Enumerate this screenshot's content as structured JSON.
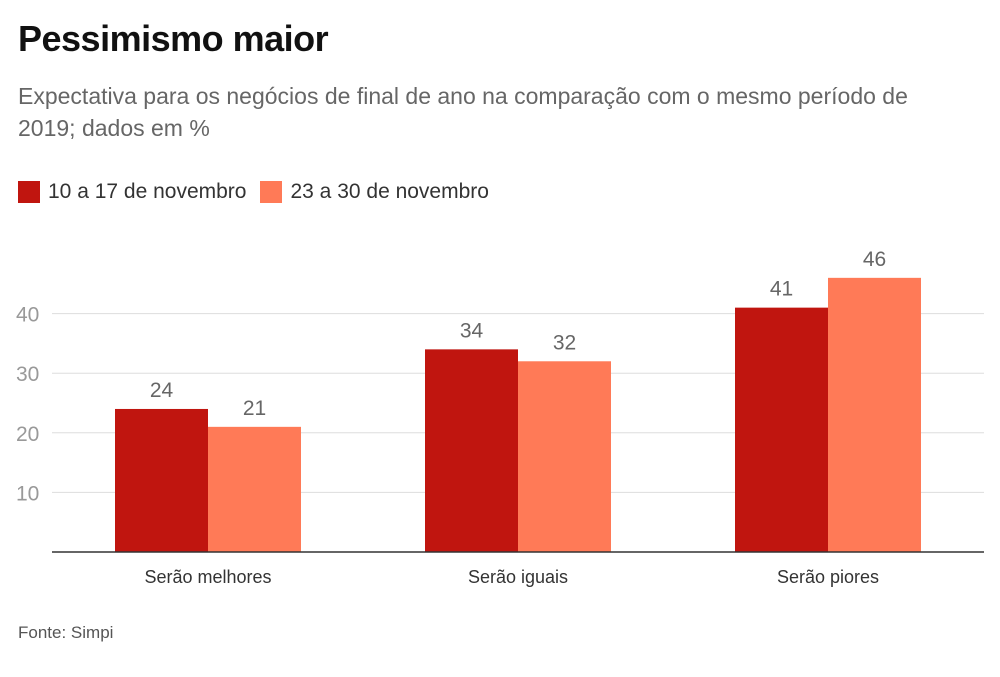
{
  "header": {
    "title": "Pessimismo maior",
    "subtitle": "Expectativa para os negócios de final de ano na comparação com o mesmo período de 2019; dados em %"
  },
  "footer": {
    "source": "Fonte: Simpi"
  },
  "colors": {
    "series1": "#c0150f",
    "series2": "#ff7a57",
    "grid": "#dddddd",
    "axis": "#333333",
    "tick": "#999999",
    "label": "#666666"
  },
  "chart_data": {
    "type": "bar",
    "title": "Pessimismo maior",
    "subtitle": "Expectativa para os negócios de final de ano na comparação com o mesmo período de 2019; dados em %",
    "categories": [
      "Serão melhores",
      "Serão iguais",
      "Serão piores"
    ],
    "series": [
      {
        "name": "10 a 17 de novembro",
        "values": [
          24,
          34,
          41
        ]
      },
      {
        "name": "23 a 30 de novembro",
        "values": [
          21,
          32,
          46
        ]
      }
    ],
    "ylim": [
      0,
      50
    ],
    "yticks": [
      10,
      20,
      30,
      40
    ],
    "grid": true,
    "legend": "top-left",
    "xlabel": "",
    "ylabel": ""
  }
}
